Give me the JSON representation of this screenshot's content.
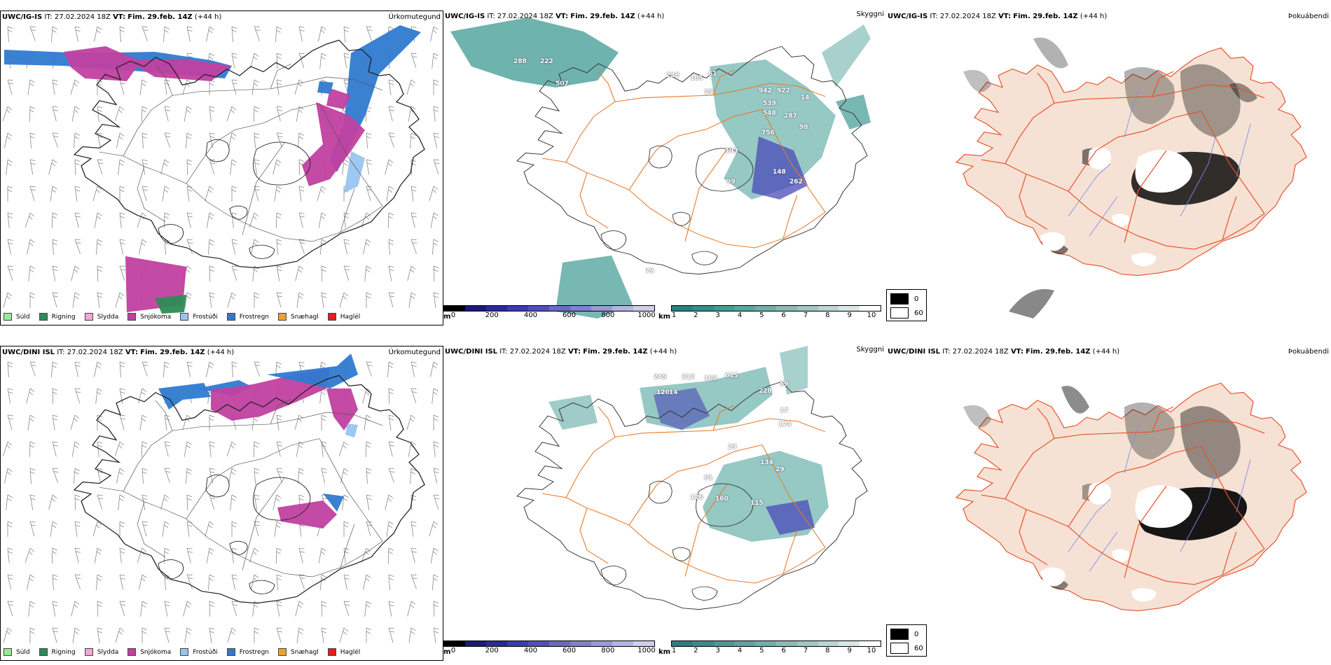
{
  "rows": [
    {
      "model": "UWC/IG-IS",
      "issue_label": "IT:",
      "issue_time": "27.02.2024 18Z",
      "valid_label": "VT:",
      "valid_time": "Fim. 29.feb. 14Z",
      "lead": "(+44 h)",
      "cloud_labels": [
        "288",
        "222",
        "507",
        "238",
        "185",
        "61",
        "25",
        "942",
        "922",
        "539",
        "548",
        "14",
        "287",
        "98",
        "756",
        "193",
        "148",
        "262",
        "99",
        "79"
      ]
    },
    {
      "model": "UWC/DINI ISL",
      "issue_label": "IT:",
      "issue_time": "27.02.2024 18Z",
      "valid_label": "VT:",
      "valid_time": "Fim. 29.feb. 14Z",
      "lead": "(+44 h)",
      "cloud_labels": [
        "245",
        "212",
        "163",
        "615",
        "120",
        "14",
        "228",
        "59",
        "17",
        "174",
        "23",
        "134",
        "29",
        "61",
        "126",
        "160",
        "115"
      ]
    }
  ],
  "panel_titles": {
    "precip": "Úrkomutegund",
    "cloud": "Skyggni",
    "fog": "Þokuábendi"
  },
  "precip_legend": [
    {
      "label": "Súld",
      "color": "#90ee90"
    },
    {
      "label": "Rigning",
      "color": "#2e8b57"
    },
    {
      "label": "Slydda",
      "color": "#f4a6d7"
    },
    {
      "label": "Snjókoma",
      "color": "#c040a0"
    },
    {
      "label": "Frostúði",
      "color": "#99c4f0"
    },
    {
      "label": "Frostregn",
      "color": "#2f7ad0"
    },
    {
      "label": "Snæhagl",
      "color": "#f0a030"
    },
    {
      "label": "Haglél",
      "color": "#e02020"
    }
  ],
  "ceiling_scale": {
    "unit": "m",
    "ticks": [
      "0",
      "200",
      "400",
      "600",
      "800",
      "1000"
    ],
    "colors": [
      "#000000",
      "#1a1a7a",
      "#2a2a99",
      "#3c3cb0",
      "#5050bb",
      "#6a6ac4",
      "#8080cc",
      "#9a9ad6",
      "#b4b4e0",
      "#cfcfea"
    ]
  },
  "visibility_scale": {
    "unit": "km",
    "ticks": [
      "1",
      "2",
      "3",
      "4",
      "5",
      "6",
      "7",
      "8",
      "9",
      "10"
    ],
    "colors": [
      "#2a7f7f",
      "#3a8c8a",
      "#4a9894",
      "#5ea39f",
      "#74aeab",
      "#8bbab7",
      "#a3c7c4",
      "#bcd6d3",
      "#d6e7e5",
      "#ffffff"
    ]
  },
  "fog_legend": [
    {
      "value": "0",
      "color": "#000000"
    },
    {
      "value": "60",
      "color": "#ffffff"
    }
  ],
  "colors": {
    "land_fog": "#f5e2d4",
    "roads": "#e87a2a",
    "roads_fog": "#e8502a",
    "rivers": "#7a8ef0",
    "cloud_teal": "#3f9a93",
    "cloud_blue": "#4a4ab8",
    "snow": "#c040a0",
    "frz_rain": "#2f7ad0",
    "frz_drizzle": "#99c4f0",
    "rain": "#2e8b57"
  }
}
